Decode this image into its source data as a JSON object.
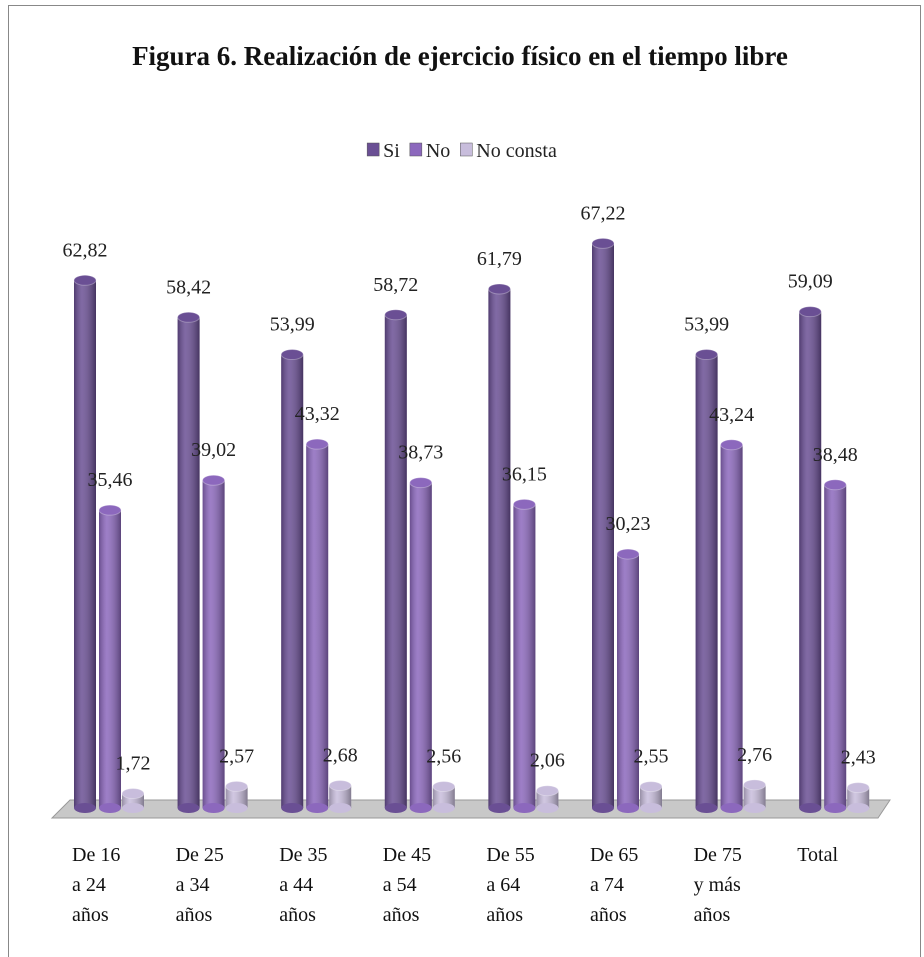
{
  "chart_data": {
    "type": "bar",
    "title": "Figura 6. Realización de ejercicio físico en el tiempo libre",
    "categories": [
      "De 16\na 24\naños",
      "De 25\na 34\naños",
      "De 35\na 44\naños",
      "De 45\na 54\naños",
      "De 55\na 64\naños",
      "De 65\na 74\naños",
      "De 75\ny más\naños",
      "Total"
    ],
    "series": [
      {
        "name": "Si",
        "color": "#6a4f94",
        "values": [
          62.82,
          58.42,
          53.99,
          58.72,
          61.79,
          67.22,
          53.99,
          59.09
        ],
        "value_labels": [
          "62,82",
          "58,42",
          "53,99",
          "58,72",
          "61,79",
          "67,22",
          "53,99",
          "59,09"
        ]
      },
      {
        "name": "No",
        "color": "#8c68bd",
        "values": [
          35.46,
          39.02,
          43.32,
          38.73,
          36.15,
          30.23,
          43.24,
          38.48
        ],
        "value_labels": [
          "35,46",
          "39,02",
          "43,32",
          "38,73",
          "36,15",
          "30,23",
          "43,24",
          "38,48"
        ]
      },
      {
        "name": "No consta",
        "color": "#c8bddc",
        "values": [
          1.72,
          2.57,
          2.68,
          2.56,
          2.06,
          2.55,
          2.76,
          2.43
        ],
        "value_labels": [
          "1,72",
          "2,57",
          "2,68",
          "2,56",
          "2,06",
          "2,55",
          "2,76",
          "2,43"
        ]
      }
    ],
    "legend": "top"
  }
}
